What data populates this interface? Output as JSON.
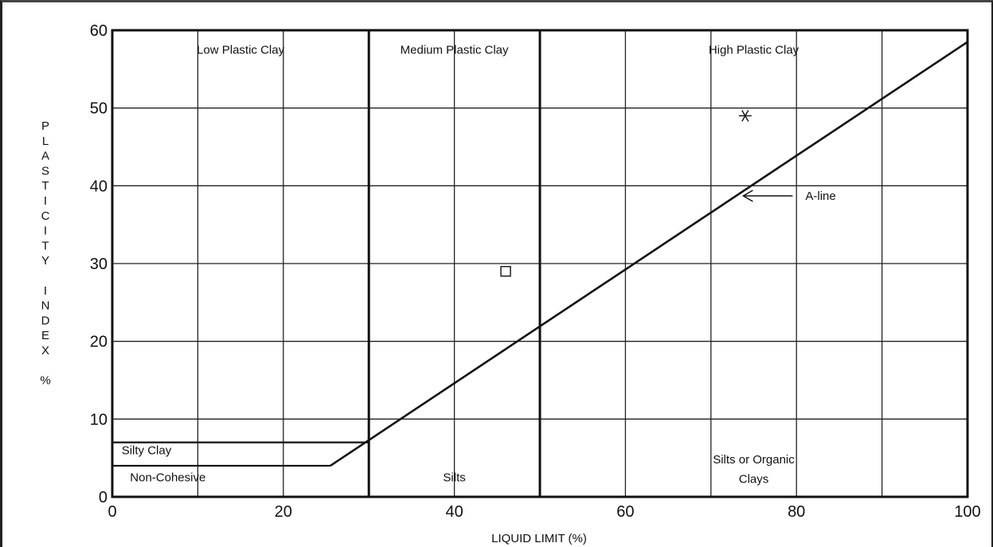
{
  "chart_data": {
    "type": "scatter",
    "title": "",
    "xlabel": "LIQUID LIMIT (%)",
    "ylabel": "PLASTICITY INDEX %",
    "xlim": [
      0,
      100
    ],
    "ylim": [
      0,
      60
    ],
    "x_ticks": [
      0,
      20,
      40,
      60,
      80,
      100
    ],
    "y_ticks": [
      0,
      10,
      20,
      30,
      40,
      50,
      60
    ],
    "x_gridlines": [
      0,
      10,
      20,
      30,
      40,
      50,
      60,
      70,
      80,
      90,
      100
    ],
    "y_gridlines": [
      0,
      10,
      20,
      30,
      40,
      50,
      60
    ],
    "grid": true,
    "boundaries_x": [
      30,
      50
    ],
    "a_line": {
      "label": "A-line",
      "points": [
        [
          25.5,
          4
        ],
        [
          100,
          58.5
        ]
      ],
      "arrow_at": [
        73.5,
        38.5
      ]
    },
    "low_zone": {
      "upper_y": 7,
      "lower_y": 4,
      "lower_end_x": 25.5
    },
    "series": [
      {
        "marker": "square",
        "x": 46,
        "y": 29
      },
      {
        "marker": "asterisk",
        "x": 74,
        "y": 49
      }
    ],
    "regions": [
      {
        "label": "Low Plastic Clay",
        "x": 15,
        "y": 57
      },
      {
        "label": "Medium Plastic Clay",
        "x": 40,
        "y": 57
      },
      {
        "label": "High Plastic Clay",
        "x": 75,
        "y": 57
      },
      {
        "label": "Silty Clay",
        "x": 4,
        "y": 5.5
      },
      {
        "label": "Non-Cohesive",
        "x": 6.5,
        "y": 2
      },
      {
        "label": "Silts",
        "x": 40,
        "y": 2
      },
      {
        "label": "Silts or Organic",
        "x": 75,
        "y": 4.3
      },
      {
        "label": "Clays",
        "x": 75,
        "y": 1.8
      }
    ],
    "ylabel_lines": [
      "P",
      "L",
      "A",
      "S",
      "T",
      "I",
      "C",
      "I",
      "T",
      "Y",
      "",
      "I",
      "N",
      "D",
      "E",
      "X",
      "",
      "%"
    ]
  }
}
